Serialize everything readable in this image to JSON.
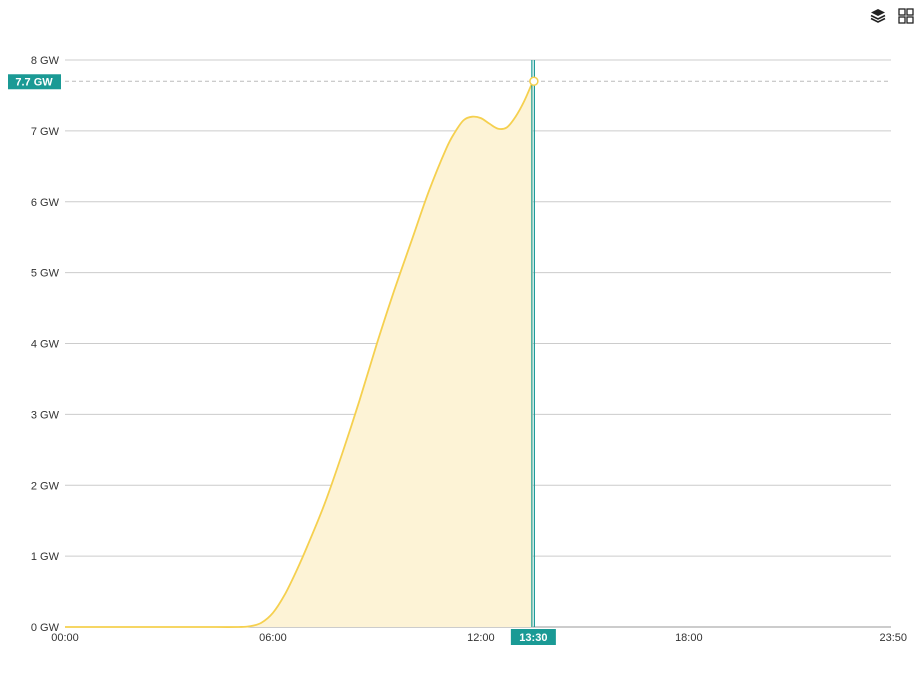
{
  "toolbar": {
    "layers_icon": "layers-icon",
    "grid_icon": "grid-view-icon"
  },
  "chart_data": {
    "type": "area",
    "title": "",
    "xlabel": "",
    "ylabel": "",
    "x_ticks": [
      "00:00",
      "06:00",
      "12:00",
      "18:00",
      "23:50"
    ],
    "y_ticks": [
      "0 GW",
      "1 GW",
      "2 GW",
      "3 GW",
      "4 GW",
      "5 GW",
      "6 GW",
      "7 GW",
      "8 GW"
    ],
    "x_range_minutes": [
      0,
      1430
    ],
    "ylim": [
      0,
      8
    ],
    "grid": true,
    "colors": {
      "line": "#f5d04f",
      "fill": "#fdf3d6",
      "cursor": "#1a9a95",
      "grid": "#cccccc",
      "axis": "#999999"
    },
    "series": [
      {
        "x": [
          "00:00",
          "01:00",
          "02:00",
          "03:00",
          "04:00",
          "05:00",
          "05:20",
          "05:40",
          "06:00",
          "06:20",
          "06:40",
          "07:00",
          "07:30",
          "08:00",
          "08:30",
          "09:00",
          "09:30",
          "10:00",
          "10:30",
          "11:00",
          "11:15",
          "11:30",
          "11:45",
          "12:00",
          "12:15",
          "12:30",
          "12:45",
          "13:00",
          "13:15",
          "13:30"
        ],
        "y": [
          0,
          0,
          0,
          0,
          0,
          0,
          0.01,
          0.06,
          0.2,
          0.45,
          0.78,
          1.15,
          1.75,
          2.45,
          3.2,
          4.0,
          4.75,
          5.45,
          6.15,
          6.75,
          6.98,
          7.15,
          7.2,
          7.18,
          7.1,
          7.03,
          7.05,
          7.2,
          7.42,
          7.7
        ]
      }
    ],
    "cursor": {
      "x_label": "13:30",
      "y_label": "7.7 GW",
      "x": "13:30",
      "y": 7.7
    }
  }
}
